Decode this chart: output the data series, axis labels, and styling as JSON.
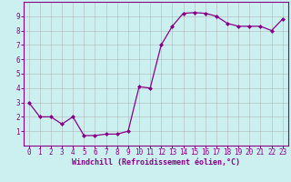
{
  "x": [
    0,
    1,
    2,
    3,
    4,
    5,
    6,
    7,
    8,
    9,
    10,
    11,
    12,
    13,
    14,
    15,
    16,
    17,
    18,
    19,
    20,
    21,
    22,
    23
  ],
  "y": [
    3.0,
    2.0,
    2.0,
    1.5,
    2.0,
    0.7,
    0.7,
    0.8,
    0.8,
    1.0,
    4.1,
    4.0,
    7.0,
    8.3,
    9.2,
    9.25,
    9.2,
    9.0,
    8.5,
    8.3,
    8.3,
    8.3,
    8.0,
    8.8
  ],
  "line_color": "#880088",
  "marker": "D",
  "marker_size": 2.0,
  "line_width": 0.9,
  "bg_color": "#ccf0f0",
  "grid_color": "#aaaaaa",
  "xlabel": "Windchill (Refroidissement éolien,°C)",
  "ylabel": "",
  "title": "",
  "xlim": [
    -0.5,
    23.5
  ],
  "ylim": [
    0,
    10
  ],
  "yticks": [
    1,
    2,
    3,
    4,
    5,
    6,
    7,
    8,
    9
  ],
  "xticks": [
    0,
    1,
    2,
    3,
    4,
    5,
    6,
    7,
    8,
    9,
    10,
    11,
    12,
    13,
    14,
    15,
    16,
    17,
    18,
    19,
    20,
    21,
    22,
    23
  ],
  "xlabel_fontsize": 6.0,
  "tick_fontsize": 5.5,
  "axis_color": "#880088",
  "spine_color": "#880088"
}
